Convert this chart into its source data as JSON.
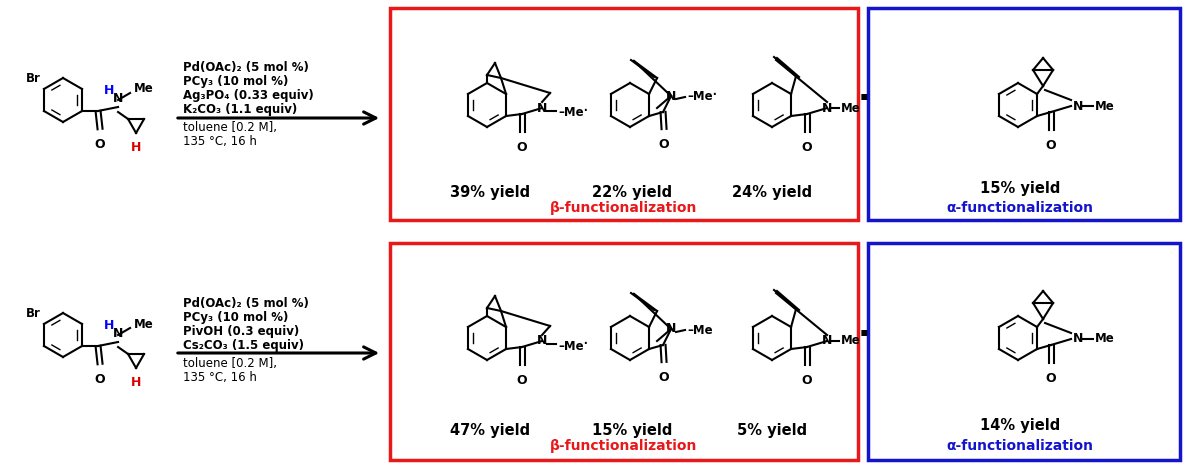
{
  "fig_width": 11.86,
  "fig_height": 4.71,
  "bg": "#ffffff",
  "red": "#e8191a",
  "blue": "#1414cc",
  "H_blue": "#0000ff",
  "H_red": "#dd0000",
  "black": "#000000",
  "row1": {
    "r1": "Pd(OAc)₂ (5 mol %)",
    "r2": "PCy₃ (10 mol %)",
    "r3": "Ag₃PO₄ (0.33 equiv)",
    "r4": "K₂CO₃ (1.1 equiv)",
    "r5": "toluene [0.2 M],",
    "r6": "135 °C, 16 h",
    "yields_beta": [
      "39% yield",
      "22% yield",
      "24% yield"
    ],
    "yield_alpha": "15% yield",
    "beta_label": "β-functionalization",
    "alpha_label": "α-functionalization"
  },
  "row2": {
    "r1": "Pd(OAc)₂ (5 mol %)",
    "r2": "PCy₃ (10 mol %)",
    "r3": "PivOH (0.3 equiv)",
    "r4": "Cs₂CO₃ (1.5 equiv)",
    "r5": "toluene [0.2 M],",
    "r6": "135 °C, 16 h",
    "yields_beta": [
      "47% yield",
      "15% yield",
      "5% yield"
    ],
    "yield_alpha": "14% yield",
    "beta_label": "β-functionalization",
    "alpha_label": "α-functionalization"
  }
}
